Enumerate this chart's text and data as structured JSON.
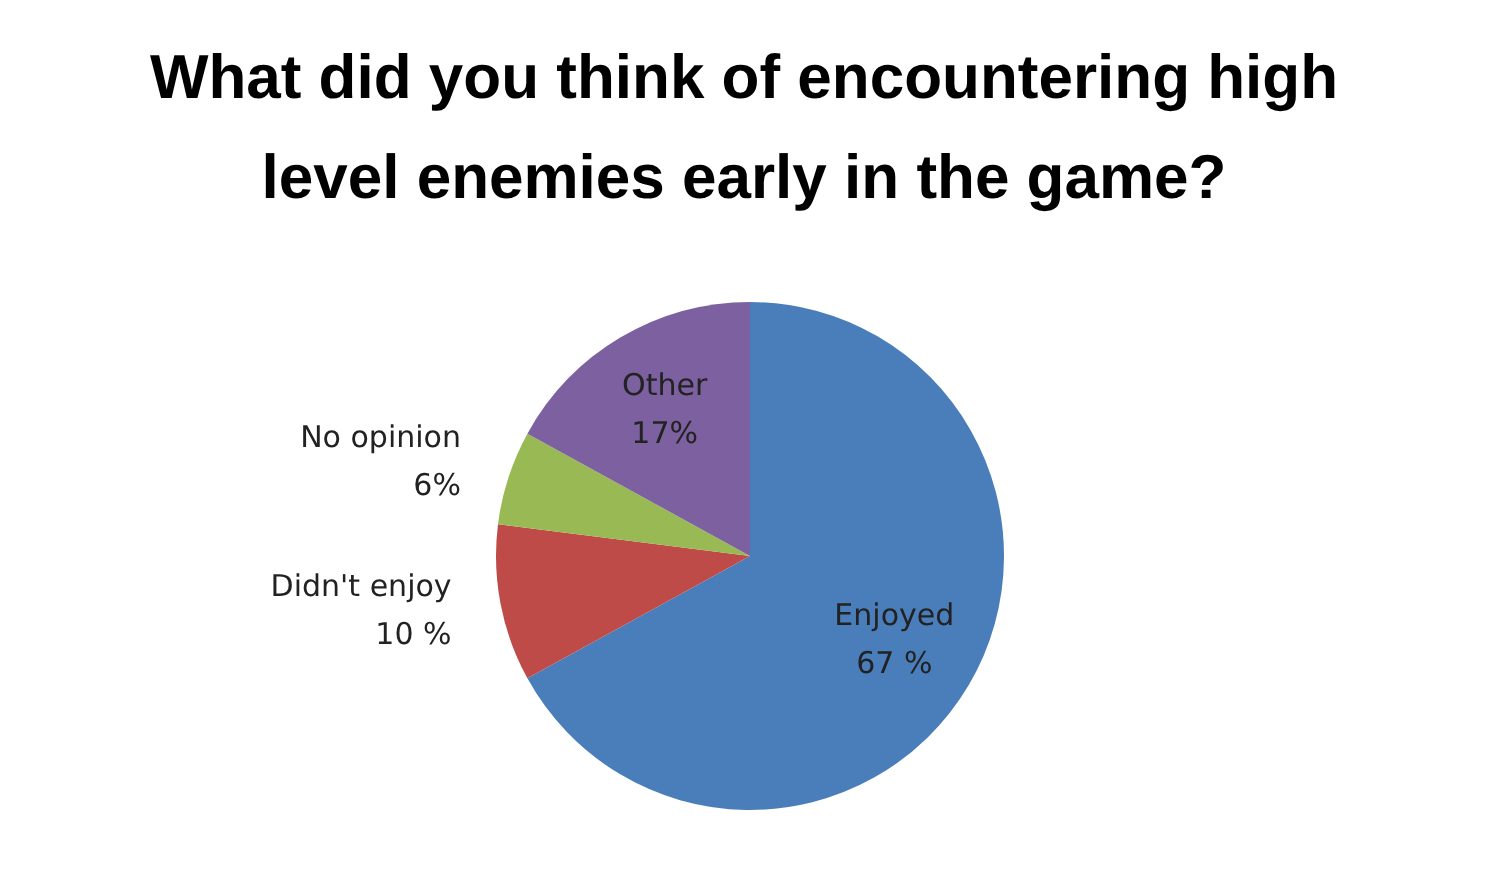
{
  "chart_data": {
    "type": "pie",
    "title": "What did you think of encountering high level enemies early in the game?",
    "categories": [
      "Enjoyed",
      "Didn't enjoy",
      "No opinion",
      "Other"
    ],
    "values": [
      67,
      10,
      6,
      17
    ],
    "value_labels": [
      "67 %",
      "10 %",
      "6%",
      "17%"
    ],
    "colors": [
      "#4a7ebb",
      "#be4b48",
      "#98b954",
      "#7d60a0"
    ],
    "legend": false
  }
}
